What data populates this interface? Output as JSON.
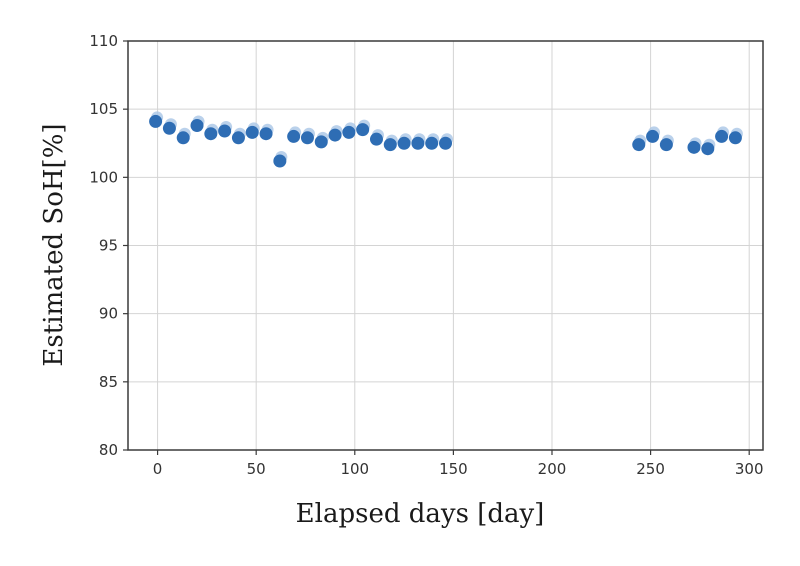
{
  "chart_data": {
    "type": "scatter",
    "title": "",
    "xlabel": "Elapsed days [day]",
    "ylabel": "Estimated SoH[%]",
    "xlim": [
      -15,
      307
    ],
    "ylim": [
      80,
      110
    ],
    "xticks": [
      "0",
      "50",
      "100",
      "150",
      "200",
      "250",
      "300"
    ],
    "yticks": [
      "80",
      "85",
      "90",
      "95",
      "100",
      "105",
      "110"
    ],
    "grid": true,
    "legend": "none",
    "marker_color": "#2e6db4",
    "marker_color_light": "#a9c5e6",
    "series": [
      {
        "x": [
          -1,
          6,
          13,
          20,
          27,
          34,
          41,
          48,
          55,
          62,
          69,
          76,
          83,
          90,
          97,
          104,
          111,
          118,
          125,
          132,
          139,
          146,
          244,
          251,
          258,
          272,
          279,
          286,
          293
        ],
        "y": [
          104.1,
          103.6,
          102.9,
          103.8,
          103.2,
          103.4,
          102.9,
          103.3,
          103.2,
          101.2,
          103.0,
          102.9,
          102.6,
          103.1,
          103.3,
          103.5,
          102.8,
          102.4,
          102.5,
          102.5,
          102.5,
          102.5,
          102.4,
          103.0,
          102.4,
          102.2,
          102.1,
          103.0,
          102.9
        ]
      }
    ]
  }
}
